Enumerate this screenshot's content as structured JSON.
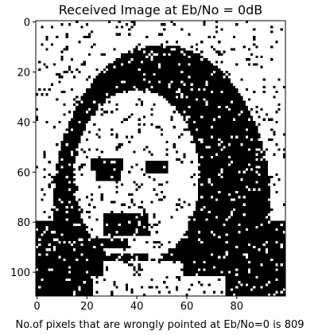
{
  "chart_data": {
    "type": "heatmap",
    "title": "Received Image at Eb/No = 0dB",
    "xlabel": "No.of pixels that are wrongly pointed at Eb/No=0 is 809",
    "ylabel": "",
    "image_width": 100,
    "image_height": 110,
    "xlim": [
      -0.5,
      99.5
    ],
    "ylim": [
      109.5,
      -0.5
    ],
    "x_ticks": [
      0,
      20,
      40,
      60,
      80
    ],
    "y_ticks": [
      0,
      20,
      40,
      60,
      80,
      100
    ],
    "colormap": {
      "0": "#000000",
      "1": "#ffffff"
    },
    "grid": false,
    "legend": "none",
    "wrong_pixels": 809
  }
}
